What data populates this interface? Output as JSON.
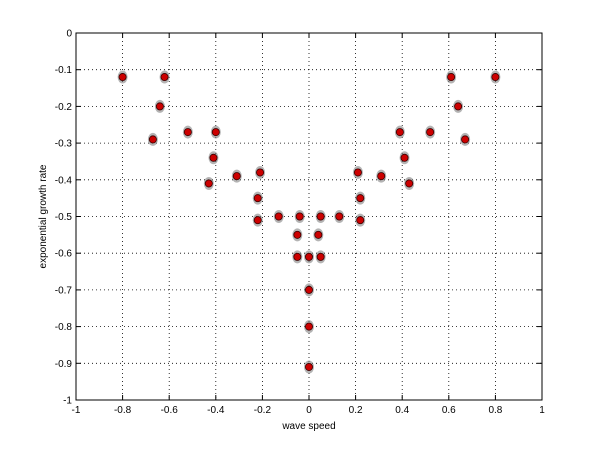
{
  "chart_data": {
    "type": "scatter",
    "title": "",
    "xlabel": "wave speed",
    "ylabel": "exponential growth rate",
    "xlim": [
      -1,
      1
    ],
    "ylim": [
      -1,
      0
    ],
    "xticks": [
      -1,
      -0.8,
      -0.6,
      -0.4,
      -0.2,
      0,
      0.2,
      0.4,
      0.6,
      0.8,
      1
    ],
    "yticks": [
      0,
      -0.1,
      -0.2,
      -0.3,
      -0.4,
      -0.5,
      -0.6,
      -0.7,
      -0.8,
      -0.9,
      -1
    ],
    "xtick_labels": [
      "-1",
      "-0.8",
      "-0.6",
      "-0.4",
      "-0.2",
      "0",
      "0.2",
      "0.4",
      "0.6",
      "0.8",
      "1"
    ],
    "ytick_labels": [
      "0",
      "-0.1",
      "-0.2",
      "-0.3",
      "-0.4",
      "-0.5",
      "-0.6",
      "-0.7",
      "-0.8",
      "-0.9",
      "-1"
    ],
    "grid": true,
    "colors": {
      "marker_fill": "#cc0000",
      "marker_halo": "#777777",
      "axis": "#000000"
    },
    "series": [
      {
        "x": [
          -0.8,
          -0.64,
          -0.62,
          -0.67,
          -0.52,
          -0.4,
          -0.41,
          -0.43,
          -0.31,
          -0.21,
          -0.22,
          -0.22,
          -0.13,
          -0.04,
          -0.05,
          -0.05,
          0.0,
          0.0,
          0.0,
          0.0,
          0.05,
          0.04,
          0.05,
          0.8,
          0.64,
          0.61,
          0.67,
          0.52,
          0.39,
          0.41,
          0.43,
          0.31,
          0.21,
          0.22,
          0.22,
          0.13
        ],
        "y": [
          -0.12,
          -0.2,
          -0.12,
          -0.29,
          -0.27,
          -0.27,
          -0.34,
          -0.41,
          -0.39,
          -0.38,
          -0.45,
          -0.51,
          -0.5,
          -0.5,
          -0.55,
          -0.61,
          -0.61,
          -0.7,
          -0.8,
          -0.91,
          -0.5,
          -0.55,
          -0.61,
          -0.12,
          -0.2,
          -0.12,
          -0.29,
          -0.27,
          -0.27,
          -0.34,
          -0.41,
          -0.39,
          -0.38,
          -0.45,
          -0.51,
          -0.5
        ]
      }
    ]
  }
}
